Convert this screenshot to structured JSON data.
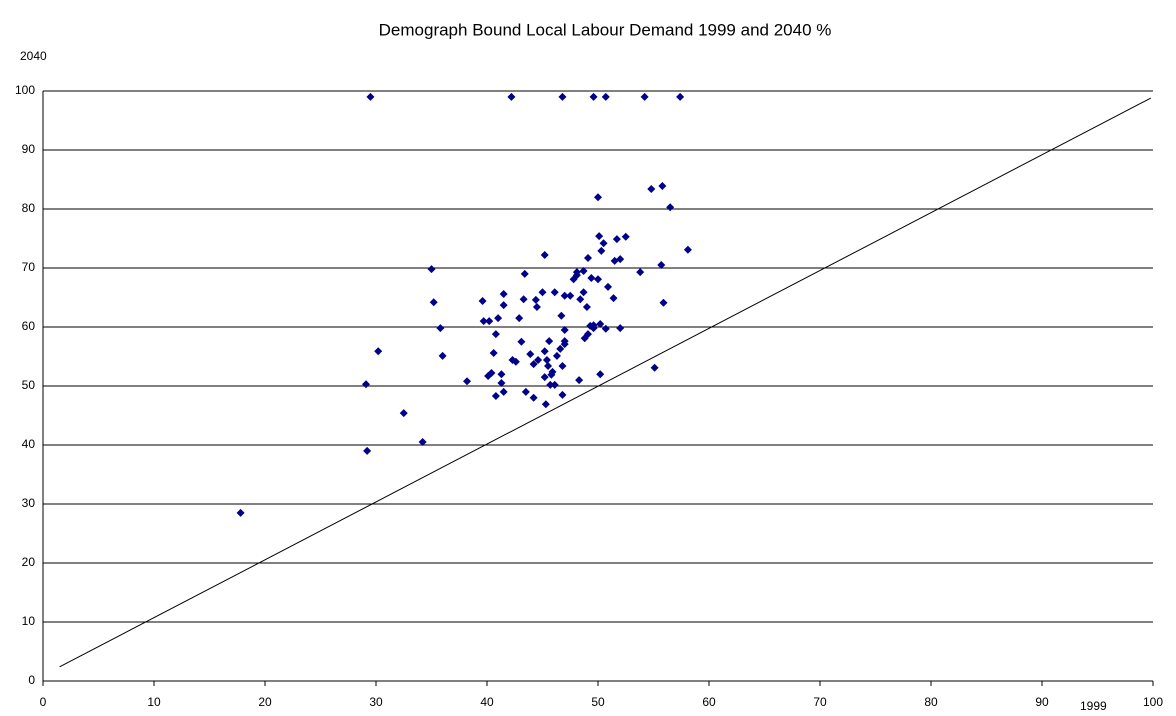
{
  "chart_data": {
    "type": "scatter",
    "title": "Demograph Bound Local Labour Demand 1999 and 2040  %",
    "xlabel": "1999",
    "ylabel": "2040",
    "color": "#00008b",
    "x": [
      29.5,
      42.2,
      46.8,
      49.6,
      50.7,
      54.2,
      57.4,
      17.8,
      29.2,
      29.1,
      30.2,
      32.5,
      34.2,
      35.0,
      35.2,
      35.8,
      36.0,
      38.2,
      39.6,
      39.7,
      40.2,
      40.1,
      40.4,
      40.6,
      40.8,
      41.0,
      40.8,
      41.3,
      41.3,
      41.5,
      41.5,
      41.5,
      42.3,
      42.6,
      42.9,
      43.1,
      43.3,
      43.4,
      43.5,
      43.9,
      44.2,
      44.2,
      44.4,
      44.5,
      44.6,
      45.0,
      45.2,
      45.2,
      45.2,
      45.3,
      45.4,
      45.5,
      45.6,
      45.7,
      45.8,
      45.9,
      46.1,
      46.1,
      46.3,
      46.6,
      46.7,
      46.8,
      46.8,
      47.0,
      47.0,
      47.0,
      47.0,
      47.5,
      47.8,
      48.1,
      48.1,
      48.3,
      48.4,
      48.7,
      48.7,
      48.8,
      49.0,
      49.1,
      49.3,
      49.1,
      49.4,
      49.6,
      49.6,
      50.0,
      50.0,
      50.1,
      50.2,
      50.2,
      50.3,
      50.5,
      50.7,
      50.9,
      51.4,
      51.5,
      51.7,
      52.0,
      52.0,
      52.5,
      53.8,
      54.8,
      55.1,
      55.7,
      55.8,
      55.9,
      56.5,
      58.1
    ],
    "y": [
      99,
      99,
      99,
      99,
      99,
      99,
      99,
      28.5,
      39.0,
      50.3,
      55.9,
      45.4,
      40.5,
      69.8,
      64.2,
      59.8,
      55.1,
      50.8,
      64.4,
      61.0,
      61.0,
      51.7,
      52.2,
      55.6,
      58.8,
      61.5,
      48.3,
      52.0,
      50.5,
      49.0,
      65.6,
      63.7,
      54.4,
      54.1,
      61.5,
      57.5,
      64.7,
      69.0,
      49.0,
      55.4,
      53.7,
      48.0,
      64.6,
      63.4,
      54.4,
      65.9,
      55.9,
      51.5,
      72.2,
      46.9,
      54.4,
      53.4,
      57.6,
      50.2,
      51.9,
      52.4,
      65.9,
      50.2,
      55.1,
      56.3,
      61.9,
      48.5,
      53.4,
      57.1,
      59.5,
      65.3,
      57.6,
      65.3,
      68.1,
      69.3,
      68.8,
      51.0,
      64.7,
      65.9,
      69.5,
      58.1,
      63.4,
      58.8,
      60.2,
      71.7,
      68.3,
      60.3,
      59.8,
      82.0,
      68.1,
      75.4,
      60.5,
      52.0,
      72.9,
      74.2,
      59.7,
      66.8,
      64.9,
      71.2,
      74.9,
      71.5,
      59.8,
      75.3,
      69.3,
      83.4,
      53.1,
      70.5,
      83.9,
      64.1,
      80.3,
      73.1
    ],
    "trendline": {
      "x": [
        1.5,
        99.8
      ],
      "y": [
        2.4,
        98.8
      ],
      "color": "#000000"
    },
    "xlim": [
      0,
      100
    ],
    "ylim": [
      0,
      100
    ],
    "xticks": [
      0,
      10,
      20,
      30,
      40,
      50,
      60,
      70,
      80,
      90,
      100
    ],
    "yticks": [
      0,
      10,
      20,
      30,
      40,
      50,
      60,
      70,
      80,
      90,
      100
    ],
    "grid": true
  }
}
